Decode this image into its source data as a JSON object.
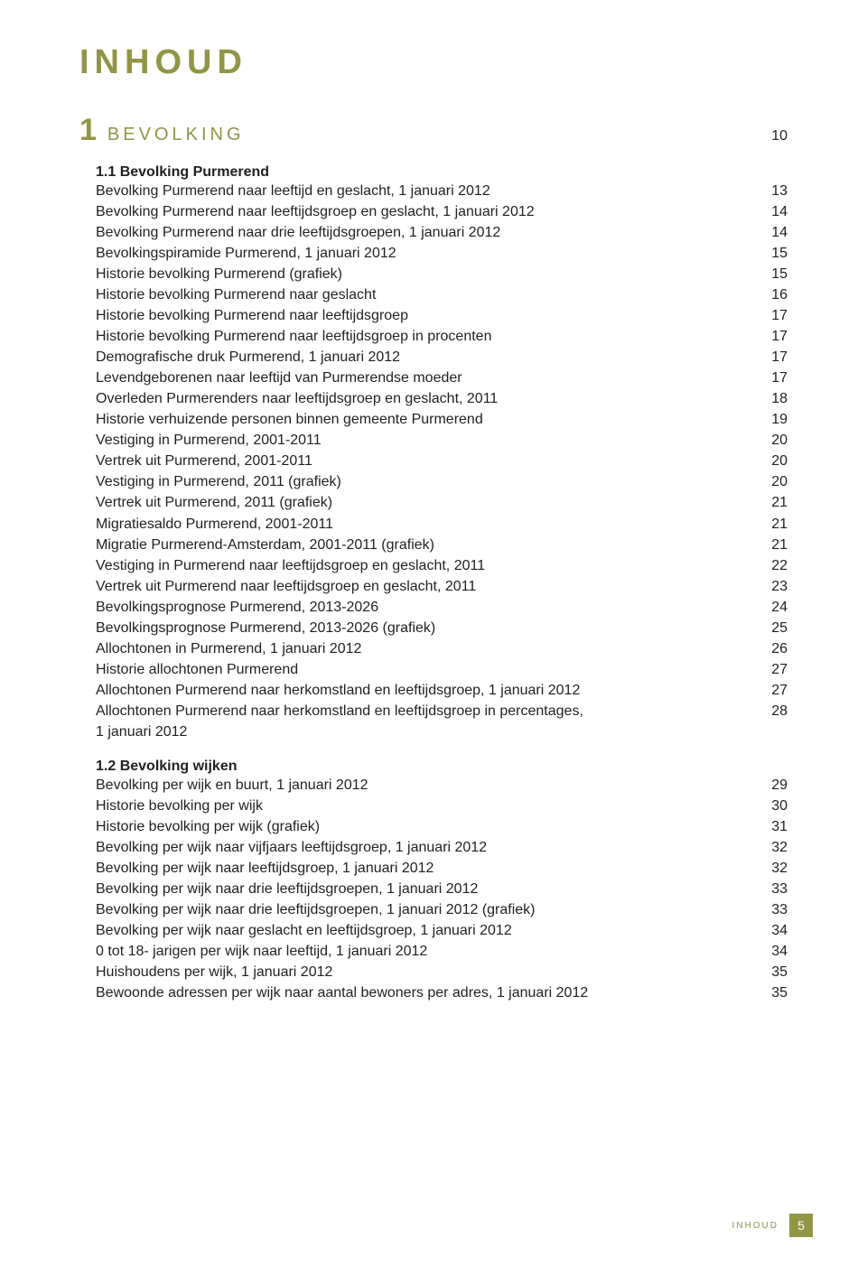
{
  "page_title": "INHOUD",
  "chapter": {
    "num": "1",
    "label": "BEVOLKING",
    "page": "10"
  },
  "section1": {
    "title": "1.1 Bevolking Purmerend",
    "items": [
      {
        "label": "Bevolking Purmerend naar leeftijd en geslacht, 1 januari 2012",
        "page": "13"
      },
      {
        "label": "Bevolking Purmerend naar leeftijdsgroep en geslacht, 1 januari 2012",
        "page": "14"
      },
      {
        "label": "Bevolking Purmerend naar drie leeftijdsgroepen, 1 januari 2012",
        "page": "14"
      },
      {
        "label": "Bevolkingspiramide Purmerend, 1 januari 2012",
        "page": "15"
      },
      {
        "label": "Historie bevolking Purmerend (grafiek)",
        "page": "15"
      },
      {
        "label": "Historie bevolking Purmerend naar geslacht",
        "page": "16"
      },
      {
        "label": "Historie bevolking Purmerend naar leeftijdsgroep",
        "page": "17"
      },
      {
        "label": "Historie bevolking Purmerend naar leeftijdsgroep in procenten",
        "page": "17"
      },
      {
        "label": "Demografische druk Purmerend, 1 januari 2012",
        "page": "17"
      },
      {
        "label": "Levendgeborenen naar leeftijd van Purmerendse moeder",
        "page": "17"
      },
      {
        "label": "Overleden Purmerenders naar leeftijdsgroep en geslacht, 2011",
        "page": "18"
      },
      {
        "label": "Historie verhuizende personen binnen gemeente Purmerend",
        "page": "19"
      },
      {
        "label": "Vestiging in Purmerend, 2001-2011",
        "page": "20"
      },
      {
        "label": "Vertrek uit Purmerend, 2001-2011",
        "page": "20"
      },
      {
        "label": "Vestiging in Purmerend, 2011 (grafiek)",
        "page": "20"
      },
      {
        "label": "Vertrek uit Purmerend, 2011 (grafiek)",
        "page": "21"
      },
      {
        "label": "Migratiesaldo Purmerend, 2001-2011",
        "page": "21"
      },
      {
        "label": "Migratie Purmerend-Amsterdam, 2001-2011 (grafiek)",
        "page": "21"
      },
      {
        "label": "Vestiging in Purmerend naar leeftijdsgroep en geslacht, 2011",
        "page": "22"
      },
      {
        "label": "Vertrek uit Purmerend naar leeftijdsgroep en geslacht, 2011",
        "page": "23"
      },
      {
        "label": "Bevolkingsprognose Purmerend, 2013-2026",
        "page": "24"
      },
      {
        "label": "Bevolkingsprognose Purmerend, 2013-2026 (grafiek)",
        "page": "25"
      },
      {
        "label": "Allochtonen in Purmerend, 1 januari 2012",
        "page": "26"
      },
      {
        "label": "Historie allochtonen Purmerend",
        "page": "27"
      },
      {
        "label": "Allochtonen Purmerend naar herkomstland en leeftijdsgroep, 1 januari 2012",
        "page": "27"
      },
      {
        "label": "Allochtonen Purmerend naar herkomstland en leeftijdsgroep in percentages,\n1 januari 2012",
        "page": "28"
      }
    ]
  },
  "section2": {
    "title": "1.2 Bevolking wijken",
    "items": [
      {
        "label": "Bevolking per wijk en buurt, 1 januari 2012",
        "page": "29"
      },
      {
        "label": "Historie bevolking per wijk",
        "page": "30"
      },
      {
        "label": "Historie bevolking per wijk (grafiek)",
        "page": "31"
      },
      {
        "label": "Bevolking per wijk naar vijfjaars leeftijdsgroep, 1 januari 2012",
        "page": "32"
      },
      {
        "label": "Bevolking per wijk naar leeftijdsgroep, 1 januari 2012",
        "page": "32"
      },
      {
        "label": "Bevolking per wijk naar drie leeftijdsgroepen, 1 januari 2012",
        "page": "33"
      },
      {
        "label": "Bevolking per wijk naar drie leeftijdsgroepen, 1 januari 2012 (grafiek)",
        "page": "33"
      },
      {
        "label": "Bevolking per wijk naar geslacht en leeftijdsgroep, 1 januari 2012",
        "page": "34"
      },
      {
        "label": "0 tot 18- jarigen per wijk naar leeftijd, 1 januari 2012",
        "page": "34"
      },
      {
        "label": "Huishoudens per wijk, 1 januari 2012",
        "page": "35"
      },
      {
        "label": "Bewoonde adressen per wijk naar aantal bewoners per adres, 1 januari 2012",
        "page": "35"
      }
    ]
  },
  "footer": {
    "label": "INHOUD",
    "page": "5"
  }
}
